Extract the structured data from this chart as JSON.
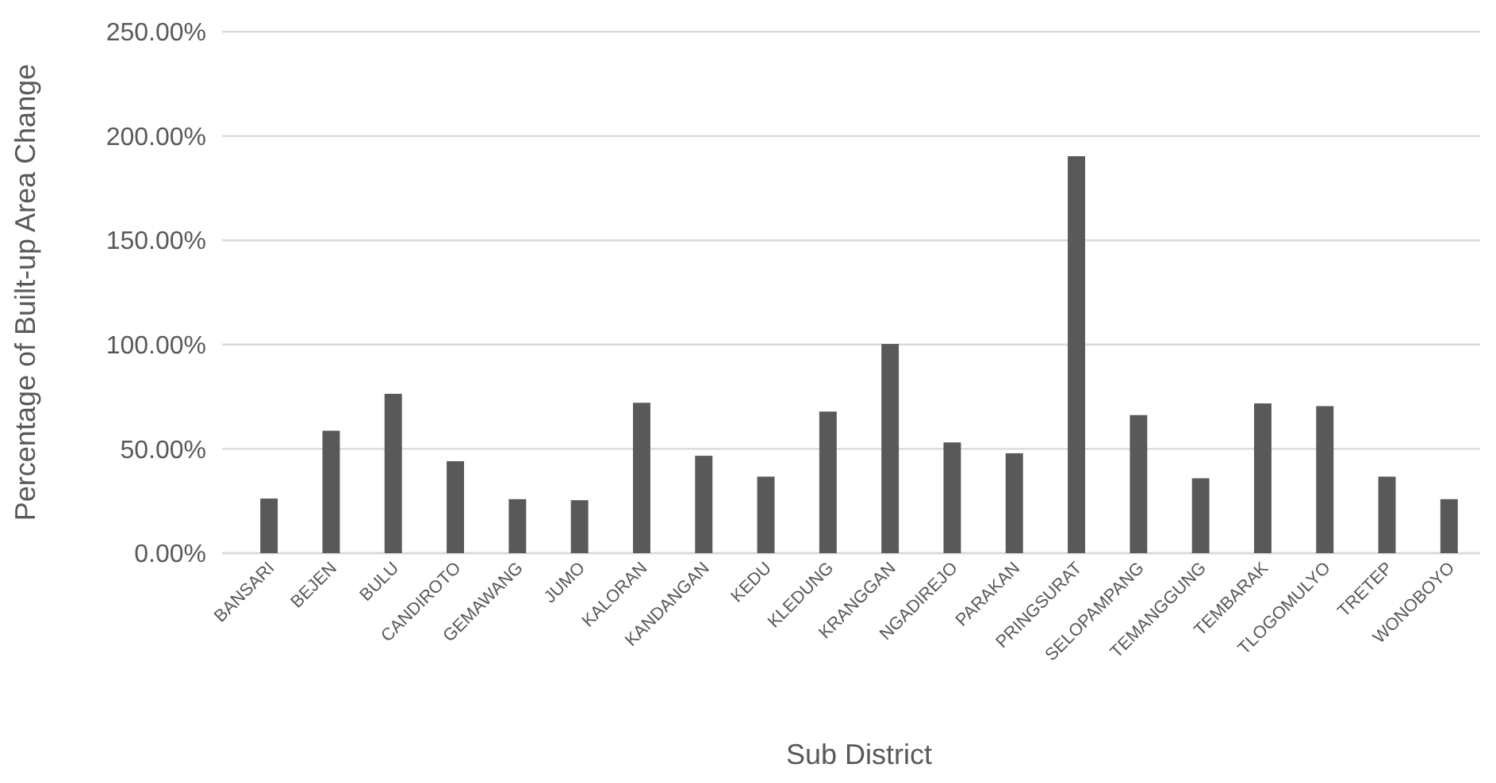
{
  "chart_data": {
    "type": "bar",
    "xlabel": "Sub District",
    "ylabel": "Percentage of Built-up Area Change",
    "categories": [
      "BANSARI",
      "BEJEN",
      "BULU",
      "CANDIROTO",
      "GEMAWANG",
      "JUMO",
      "KALORAN",
      "KANDANGAN",
      "KEDU",
      "KLEDUNG",
      "KRANGGAN",
      "NGADIREJO",
      "PARAKAN",
      "PRINGSURAT",
      "SELOPAMPANG",
      "TEMANGGUNG",
      "TEMBARAK",
      "TLOGOMULYO",
      "TRETEP",
      "WONOBOYO"
    ],
    "values": [
      26.2,
      58.7,
      76.4,
      44.1,
      25.9,
      25.4,
      72.1,
      46.7,
      36.7,
      67.9,
      100.3,
      53.1,
      47.9,
      190.3,
      66.2,
      35.9,
      71.8,
      70.5,
      36.7,
      25.9
    ],
    "color": "#595959",
    "ylim": [
      0,
      250
    ],
    "yticks": [
      {
        "value": 0,
        "label": "0.00%"
      },
      {
        "value": 50,
        "label": "50.00%"
      },
      {
        "value": 100,
        "label": "100.00%"
      },
      {
        "value": 150,
        "label": "150.00%"
      },
      {
        "value": 200,
        "label": "200.00%"
      },
      {
        "value": 250,
        "label": "250.00%"
      }
    ],
    "grid": "y"
  }
}
